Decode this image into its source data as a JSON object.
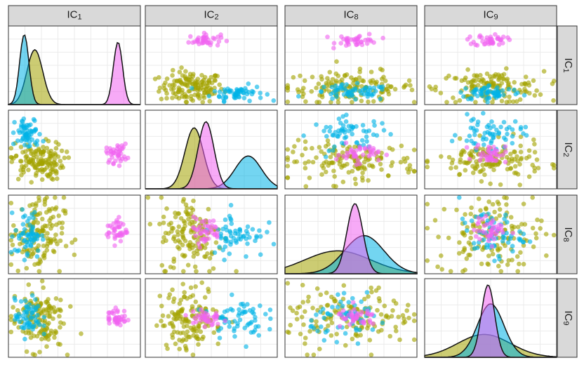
{
  "chart_data": {
    "type": "scatter-matrix",
    "variables": [
      {
        "base": "IC",
        "sub": "1"
      },
      {
        "base": "IC",
        "sub": "2"
      },
      {
        "base": "IC",
        "sub": "8"
      },
      {
        "base": "IC",
        "sub": "9"
      }
    ],
    "grid": true,
    "legend": "none",
    "colors": {
      "group_a": "#00b3e6",
      "group_b": "#a3a300",
      "group_c": "#f064f0",
      "strip_bg": "#d9d9d9",
      "panel_border": "#333333",
      "gridline": "#ebebeb"
    },
    "diagonal_density": {
      "IC1": {
        "group_a": {
          "peak_x": 0.12,
          "peak_density": 0.92,
          "spread": 0.035
        },
        "group_b": {
          "peak_x": 0.2,
          "peak_density": 0.72,
          "spread": 0.06
        },
        "group_c": {
          "peak_x": 0.83,
          "peak_density": 0.82,
          "spread": 0.035
        }
      },
      "IC2": {
        "group_a": {
          "peak_x": 0.78,
          "peak_density": 0.43,
          "spread": 0.1
        },
        "group_b": {
          "peak_x": 0.37,
          "peak_density": 0.8,
          "spread": 0.07
        },
        "group_c": {
          "peak_x": 0.46,
          "peak_density": 0.88,
          "spread": 0.06
        }
      },
      "IC8": {
        "group_a": {
          "peak_x": 0.6,
          "peak_density": 0.5,
          "spread": 0.15
        },
        "group_b": {
          "peak_x": 0.4,
          "peak_density": 0.3,
          "spread": 0.25
        },
        "group_c": {
          "peak_x": 0.53,
          "peak_density": 0.92,
          "spread": 0.06
        }
      },
      "IC9": {
        "group_a": {
          "peak_x": 0.5,
          "peak_density": 0.7,
          "spread": 0.1
        },
        "group_b": {
          "peak_x": 0.45,
          "peak_density": 0.3,
          "spread": 0.2
        },
        "group_c": {
          "peak_x": 0.48,
          "peak_density": 0.95,
          "spread": 0.05
        }
      }
    },
    "point_clusters": {
      "IC1": {
        "group_a": {
          "center": 0.15,
          "spread": 0.05
        },
        "group_b": {
          "center": 0.22,
          "spread": 0.1
        },
        "group_c": {
          "center": 0.82,
          "spread": 0.04
        }
      },
      "IC2": {
        "group_a": {
          "center": 0.7,
          "spread": 0.1
        },
        "group_b": {
          "center": 0.35,
          "spread": 0.12
        },
        "group_c": {
          "center": 0.45,
          "spread": 0.06
        }
      },
      "IC8": {
        "group_a": {
          "center": 0.5,
          "spread": 0.15
        },
        "group_b": {
          "center": 0.5,
          "spread": 0.25
        },
        "group_c": {
          "center": 0.55,
          "spread": 0.08
        }
      },
      "IC9": {
        "group_a": {
          "center": 0.5,
          "spread": 0.12
        },
        "group_b": {
          "center": 0.5,
          "spread": 0.2
        },
        "group_c": {
          "center": 0.5,
          "spread": 0.06
        }
      }
    }
  }
}
